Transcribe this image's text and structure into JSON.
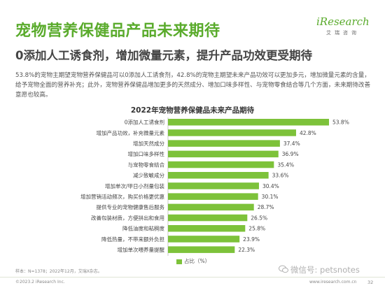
{
  "page": {
    "title": "宠物营养保健品产品未来期待",
    "subtitle": "0添加人工诱食剂，增加微量元素，提升产品功效更受期待",
    "paragraph": "53.8%的宠物主期望宠物营养保健品可以0添加人工诱食剂，42.8%的宠物主期望未来产品功效可以更加多元，增加微量元素的含量，给予宠物全面的营养补充；此外，宠物营养保健品增加更多的天然成分、增加口味多样性、与宠物零食结合等几个方面，未来期待改善意愿也较高。",
    "footnote": "样本：N=1378；2022年12月，艾瑞X杂志。",
    "copyright": "©2023.2 iResearch Inc.",
    "site": "www.iresearch.com.cn",
    "page_number": "32",
    "watermark": "微信号: petsnotes",
    "logo_main": "iResearch",
    "logo_sub": "艾瑞咨询"
  },
  "colors": {
    "accent": "#5aab2c",
    "bar": "#7dc23a"
  },
  "chart_data": {
    "type": "bar",
    "orientation": "horizontal",
    "title": "2022年宠物营养保健品未来产品期待",
    "categories": [
      "0添加人工诱食剂",
      "增加产品功效，补充微量元素",
      "增加天然成分",
      "增加口味多样性",
      "与宠物零食结合",
      "减少致敏成分",
      "增加单次/甲日小剂量包装",
      "增加营销活动频次，购买价格更优惠",
      "提供专业的宠物健康售后服务",
      "改善包装材质，方便拼出和食用",
      "降低油度和粘稠度",
      "降低热量，不带来额外负担",
      "增加单次喂养量提醒"
    ],
    "series": [
      {
        "name": "占比（%）",
        "values": [
          53.8,
          42.8,
          37.4,
          36.9,
          35.4,
          33.6,
          30.4,
          30.1,
          28.7,
          26.5,
          25.8,
          23.9,
          22.3
        ],
        "labels": [
          "53.8%",
          "42.8%",
          "37.4%",
          "36.9%",
          "35.4%",
          "33.6%",
          "30.4%",
          "30.1%",
          "28.7%",
          "26.5%",
          "25.8%",
          "23.9%",
          "22.3%"
        ]
      }
    ],
    "legend": "bottom-center",
    "grid": false
  }
}
